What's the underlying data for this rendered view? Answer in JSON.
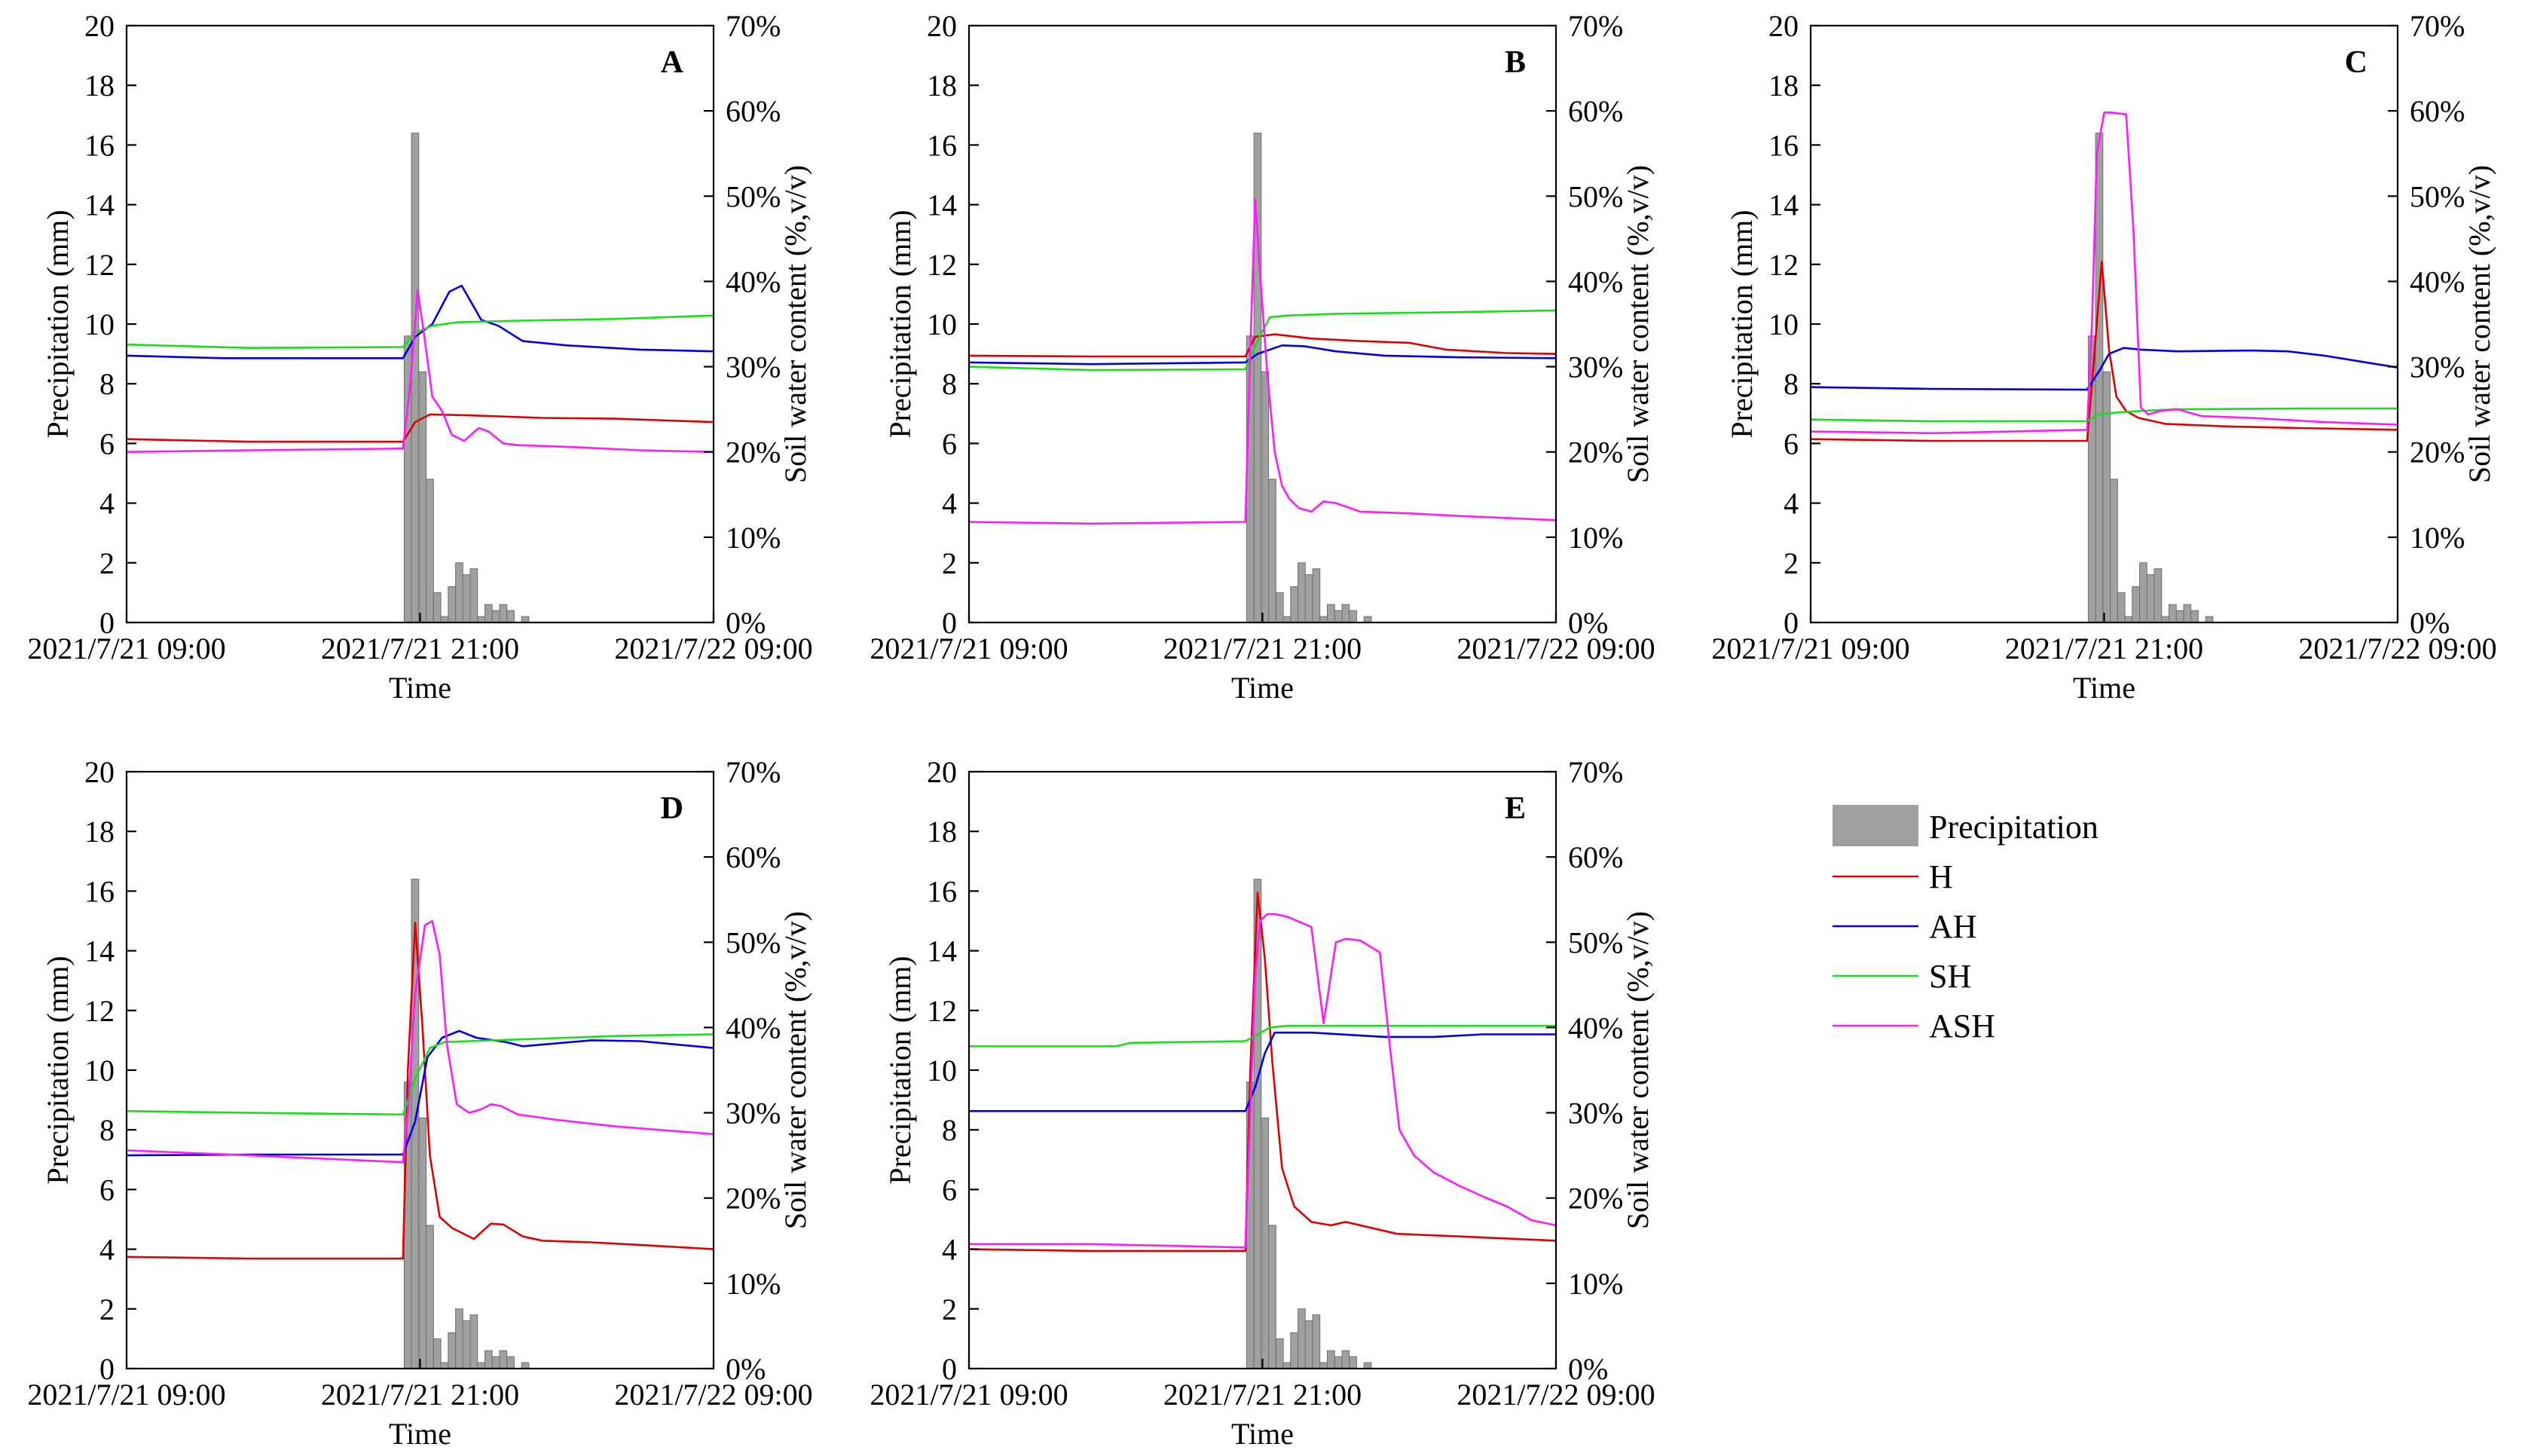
{
  "figure": {
    "time_ticks": [
      "2021/7/21 09:00",
      "2021/7/21 21:00",
      "2021/7/22 09:00"
    ],
    "xlabel": "Time",
    "ylabel_left": "Precipitation (mm)",
    "ylabel_right": "Soil water content (%,v/v)",
    "left_ticks": [
      "0",
      "2",
      "4",
      "6",
      "8",
      "10",
      "12",
      "14",
      "16",
      "18",
      "20"
    ],
    "right_ticks": [
      "0%",
      "10%",
      "20%",
      "30%",
      "40%",
      "50%",
      "60%",
      "70%"
    ]
  },
  "legend": {
    "items": [
      {
        "key": "precip",
        "label": "Precipitation",
        "color": "#a0a0a0",
        "kind": "bar"
      },
      {
        "key": "H",
        "label": "H",
        "color": "#e00000",
        "kind": "line"
      },
      {
        "key": "AH",
        "label": "AH",
        "color": "#0000e6",
        "kind": "line"
      },
      {
        "key": "SH",
        "label": "SH",
        "color": "#18e018",
        "kind": "line"
      },
      {
        "key": "ASH",
        "label": "ASH",
        "color": "#ff1aff",
        "kind": "line"
      }
    ]
  },
  "chart_data": [
    {
      "panel": "A",
      "type": "bar+line",
      "xlabel": "Time",
      "ylabel": "Precipitation (mm)",
      "y2label": "Soil water content (%,v/v)",
      "xlim": [
        0,
        24
      ],
      "ylim": [
        0,
        20
      ],
      "y2lim": [
        0,
        70
      ],
      "precipitation": {
        "x": [
          11.5,
          11.8,
          12.1,
          12.4,
          12.7,
          13.0,
          13.3,
          13.6,
          13.9,
          14.2,
          14.5,
          14.8,
          15.1,
          15.4,
          15.7,
          16.0,
          16.3,
          16.6
        ],
        "values": [
          9.6,
          16.4,
          8.4,
          4.8,
          1.0,
          0.2,
          1.2,
          2.0,
          1.6,
          1.8,
          0.2,
          0.6,
          0.4,
          0.6,
          0.4,
          0.0,
          0.2,
          0.0
        ]
      },
      "series": [
        {
          "name": "H",
          "x": [
            0,
            5,
            11.3,
            11.8,
            12.4,
            14,
            17,
            20,
            24
          ],
          "values": [
            21.5,
            21.2,
            21.2,
            23.5,
            24.4,
            24.3,
            24.0,
            23.9,
            23.5
          ]
        },
        {
          "name": "AH",
          "x": [
            0,
            4,
            11.3,
            11.8,
            12.5,
            13.2,
            13.7,
            14.1,
            14.5,
            15.2,
            16.2,
            18,
            21,
            24
          ],
          "values": [
            31.3,
            31.0,
            31.0,
            33.5,
            35.0,
            38.8,
            39.5,
            37.5,
            35.5,
            34.8,
            33.0,
            32.5,
            32.0,
            31.8
          ]
        },
        {
          "name": "SH",
          "x": [
            0,
            5,
            11.3,
            11.8,
            12.5,
            13.5,
            16,
            20,
            24
          ],
          "values": [
            32.6,
            32.2,
            32.3,
            34.0,
            34.8,
            35.2,
            35.4,
            35.6,
            36.0
          ]
        },
        {
          "name": "ASH",
          "x": [
            0,
            5,
            11.3,
            11.6,
            11.9,
            12.2,
            12.5,
            12.9,
            13.3,
            13.8,
            14.4,
            14.8,
            15.4,
            16.0,
            18,
            21,
            24
          ],
          "values": [
            20.0,
            20.2,
            20.4,
            28.0,
            39.0,
            33.0,
            26.5,
            24.8,
            22.0,
            21.3,
            22.8,
            22.4,
            21.0,
            20.8,
            20.6,
            20.2,
            20.0
          ]
        }
      ]
    },
    {
      "panel": "B",
      "type": "bar+line",
      "xlabel": "Time",
      "ylabel": "Precipitation (mm)",
      "y2label": "Soil water content (%,v/v)",
      "xlim": [
        0,
        24
      ],
      "ylim": [
        0,
        20
      ],
      "y2lim": [
        0,
        70
      ],
      "precipitation": {
        "x": [
          11.5,
          11.8,
          12.1,
          12.4,
          12.7,
          13.0,
          13.3,
          13.6,
          13.9,
          14.2,
          14.5,
          14.8,
          15.1,
          15.4,
          15.7,
          16.0,
          16.3,
          16.6
        ],
        "values": [
          9.6,
          16.4,
          8.4,
          4.8,
          1.0,
          0.2,
          1.2,
          2.0,
          1.6,
          1.8,
          0.2,
          0.6,
          0.4,
          0.6,
          0.4,
          0.0,
          0.2,
          0.0
        ]
      },
      "series": [
        {
          "name": "H",
          "x": [
            0,
            5,
            11.3,
            11.7,
            12.5,
            14,
            16,
            18,
            19.5,
            22,
            24
          ],
          "values": [
            31.3,
            31.2,
            31.2,
            33.5,
            33.8,
            33.3,
            33.0,
            32.8,
            32.0,
            31.6,
            31.5
          ]
        },
        {
          "name": "AH",
          "x": [
            0,
            5,
            11.3,
            11.8,
            12.8,
            13.7,
            15,
            17,
            20,
            24
          ],
          "values": [
            30.5,
            30.3,
            30.5,
            31.5,
            32.5,
            32.4,
            31.8,
            31.3,
            31.1,
            31.0
          ]
        },
        {
          "name": "SH",
          "x": [
            0,
            5,
            11.3,
            11.8,
            12.3,
            13,
            15,
            20,
            24
          ],
          "values": [
            30.0,
            29.6,
            29.7,
            33.0,
            35.8,
            36.0,
            36.2,
            36.4,
            36.6
          ]
        },
        {
          "name": "ASH",
          "x": [
            0,
            5,
            11.3,
            11.5,
            11.7,
            11.9,
            12.2,
            12.5,
            12.8,
            13.1,
            13.5,
            14.0,
            14.5,
            15.0,
            16.0,
            18,
            20,
            24
          ],
          "values": [
            11.8,
            11.6,
            11.8,
            32.0,
            49.6,
            41.0,
            29.0,
            20.0,
            16.0,
            14.5,
            13.4,
            13.0,
            14.2,
            14.0,
            13.0,
            12.8,
            12.5,
            12.0
          ]
        }
      ]
    },
    {
      "panel": "C",
      "type": "bar+line",
      "xlabel": "Time",
      "ylabel": "Precipitation (mm)",
      "y2label": "Soil water content (%,v/v)",
      "xlim": [
        0,
        24
      ],
      "ylim": [
        0,
        20
      ],
      "y2lim": [
        0,
        70
      ],
      "precipitation": {
        "x": [
          11.5,
          11.8,
          12.1,
          12.4,
          12.7,
          13.0,
          13.3,
          13.6,
          13.9,
          14.2,
          14.5,
          14.8,
          15.1,
          15.4,
          15.7,
          16.0,
          16.3,
          16.6
        ],
        "values": [
          9.6,
          16.4,
          8.4,
          4.8,
          1.0,
          0.2,
          1.2,
          2.0,
          1.6,
          1.8,
          0.2,
          0.6,
          0.4,
          0.6,
          0.4,
          0.0,
          0.2,
          0.0
        ]
      },
      "series": [
        {
          "name": "H",
          "x": [
            0,
            5,
            11.3,
            11.5,
            11.9,
            12.2,
            12.5,
            12.9,
            13.4,
            14.5,
            17,
            20,
            24
          ],
          "values": [
            21.5,
            21.3,
            21.3,
            28.0,
            42.3,
            32.0,
            26.5,
            24.8,
            24.0,
            23.3,
            23.0,
            22.8,
            22.6
          ]
        },
        {
          "name": "AH",
          "x": [
            0,
            5,
            11.3,
            11.8,
            12.2,
            12.8,
            13.5,
            15,
            18,
            19.5,
            21,
            22.5,
            24
          ],
          "values": [
            27.6,
            27.4,
            27.3,
            29.5,
            31.5,
            32.2,
            32.0,
            31.8,
            31.9,
            31.8,
            31.3,
            30.6,
            29.9
          ]
        },
        {
          "name": "SH",
          "x": [
            0,
            5,
            11.3,
            11.8,
            12.4,
            13.4,
            15,
            20,
            24
          ],
          "values": [
            23.8,
            23.6,
            23.6,
            24.4,
            24.6,
            24.8,
            25.0,
            25.1,
            25.1
          ]
        },
        {
          "name": "ASH",
          "x": [
            0,
            5,
            11.3,
            11.5,
            11.7,
            12.0,
            12.3,
            12.9,
            13.2,
            13.5,
            13.8,
            14.3,
            15.0,
            16.0,
            18,
            21,
            24
          ],
          "values": [
            22.4,
            22.2,
            22.6,
            35.0,
            55.0,
            59.8,
            59.8,
            59.6,
            46.0,
            25.2,
            24.4,
            24.8,
            25.0,
            24.2,
            24.0,
            23.5,
            23.2
          ]
        }
      ]
    },
    {
      "panel": "D",
      "type": "bar+line",
      "xlabel": "Time",
      "ylabel": "Precipitation (mm)",
      "y2label": "Soil water content (%,v/v)",
      "xlim": [
        0,
        24
      ],
      "ylim": [
        0,
        20
      ],
      "y2lim": [
        0,
        70
      ],
      "precipitation": {
        "x": [
          11.5,
          11.8,
          12.1,
          12.4,
          12.7,
          13.0,
          13.3,
          13.6,
          13.9,
          14.2,
          14.5,
          14.8,
          15.1,
          15.4,
          15.7,
          16.0,
          16.3,
          16.6
        ],
        "values": [
          9.6,
          16.4,
          8.4,
          4.8,
          1.0,
          0.2,
          1.2,
          2.0,
          1.6,
          1.8,
          0.2,
          0.6,
          0.4,
          0.6,
          0.4,
          0.0,
          0.2,
          0.0
        ]
      },
      "series": [
        {
          "name": "H",
          "x": [
            0,
            5,
            11.3,
            11.5,
            11.8,
            12.1,
            12.4,
            12.8,
            13.3,
            14.2,
            14.9,
            15.4,
            16.2,
            17,
            19,
            21,
            24
          ],
          "values": [
            13.1,
            12.9,
            12.9,
            35.0,
            52.3,
            40.0,
            25.0,
            17.8,
            16.5,
            15.2,
            17.0,
            16.9,
            15.5,
            15.0,
            14.8,
            14.5,
            14.0
          ]
        },
        {
          "name": "AH",
          "x": [
            0,
            5,
            11.3,
            11.8,
            12.3,
            12.9,
            13.6,
            14.3,
            15.5,
            16.2,
            17,
            19,
            21,
            24
          ],
          "values": [
            25.0,
            25.1,
            25.1,
            29.0,
            36.5,
            38.8,
            39.6,
            38.8,
            38.3,
            37.8,
            38.0,
            38.5,
            38.4,
            37.6
          ]
        },
        {
          "name": "SH",
          "x": [
            0,
            5,
            11.3,
            11.8,
            12.4,
            13,
            14,
            16,
            20,
            24
          ],
          "values": [
            30.2,
            30.0,
            29.8,
            34.0,
            37.6,
            38.3,
            38.4,
            38.6,
            39.0,
            39.2
          ]
        },
        {
          "name": "ASH",
          "x": [
            0,
            5,
            11.3,
            11.5,
            11.8,
            12.2,
            12.5,
            12.8,
            13.1,
            13.5,
            14.0,
            14.5,
            14.9,
            15.3,
            16.0,
            17.5,
            20,
            24
          ],
          "values": [
            25.6,
            25.0,
            24.2,
            30.0,
            44.0,
            52.0,
            52.5,
            48.5,
            38.0,
            31.0,
            30.0,
            30.4,
            31.0,
            30.8,
            29.8,
            29.2,
            28.4,
            27.5
          ]
        }
      ]
    },
    {
      "panel": "E",
      "type": "bar+line",
      "xlabel": "Time",
      "ylabel": "Precipitation (mm)",
      "y2label": "Soil water content (%,v/v)",
      "xlim": [
        0,
        24
      ],
      "ylim": [
        0,
        20
      ],
      "y2lim": [
        0,
        70
      ],
      "precipitation": {
        "x": [
          11.5,
          11.8,
          12.1,
          12.4,
          12.7,
          13.0,
          13.3,
          13.6,
          13.9,
          14.2,
          14.5,
          14.8,
          15.1,
          15.4,
          15.7,
          16.0,
          16.3,
          16.6
        ],
        "values": [
          9.6,
          16.4,
          8.4,
          4.8,
          1.0,
          0.2,
          1.2,
          2.0,
          1.6,
          1.8,
          0.2,
          0.6,
          0.4,
          0.6,
          0.4,
          0.0,
          0.2,
          0.0
        ]
      },
      "series": [
        {
          "name": "H",
          "x": [
            0,
            5,
            11.3,
            11.5,
            11.8,
            12.1,
            12.4,
            12.8,
            13.3,
            14.0,
            14.8,
            15.4,
            16.3,
            17.5,
            20,
            24
          ],
          "values": [
            14.0,
            13.8,
            13.8,
            35.0,
            55.8,
            48.0,
            36.0,
            23.5,
            19.0,
            17.2,
            16.8,
            17.2,
            16.6,
            15.8,
            15.5,
            15.0
          ]
        },
        {
          "name": "AH",
          "x": [
            0,
            5,
            11.3,
            11.7,
            12.1,
            12.5,
            14,
            17,
            19,
            21,
            24
          ],
          "values": [
            30.2,
            30.2,
            30.2,
            33.0,
            37.0,
            39.4,
            39.4,
            38.9,
            38.9,
            39.2,
            39.2
          ]
        },
        {
          "name": "SH",
          "x": [
            0,
            6,
            6.6,
            11.3,
            11.7,
            12.3,
            13,
            16,
            20,
            24
          ],
          "values": [
            37.8,
            37.8,
            38.2,
            38.4,
            39.0,
            40.0,
            40.2,
            40.2,
            40.2,
            40.2
          ]
        },
        {
          "name": "ASH",
          "x": [
            0,
            5,
            11.3,
            11.5,
            11.7,
            11.9,
            12.2,
            12.5,
            13.0,
            14.0,
            14.5,
            15.0,
            15.4,
            16.0,
            16.8,
            17.2,
            17.6,
            18.2,
            19.0,
            20.0,
            21.0,
            22.0,
            23.0,
            24.0
          ],
          "values": [
            14.6,
            14.6,
            14.2,
            30.0,
            46.0,
            52.5,
            53.3,
            53.3,
            53.0,
            51.8,
            40.5,
            50.0,
            50.4,
            50.2,
            48.8,
            38.0,
            28.0,
            25.0,
            23.0,
            21.5,
            20.2,
            19.0,
            17.4,
            16.8
          ]
        }
      ]
    }
  ]
}
